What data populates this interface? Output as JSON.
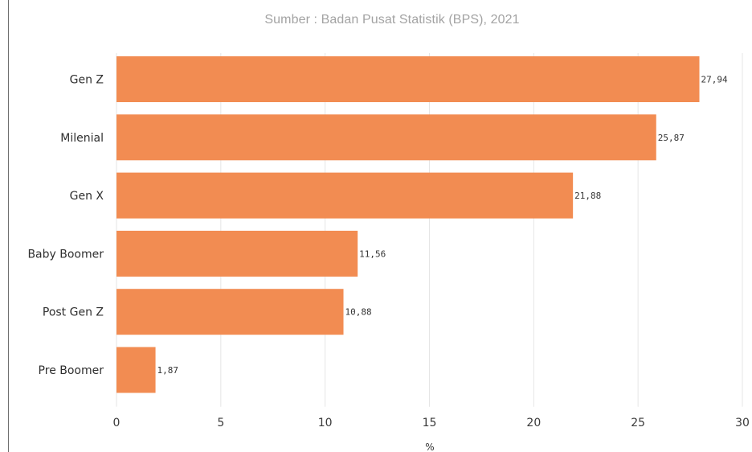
{
  "chart_data": {
    "type": "bar",
    "orientation": "horizontal",
    "title": "Sumber : Badan Pusat Statistik (BPS), 2021",
    "categories": [
      "Gen Z",
      "Milenial",
      "Gen X",
      "Baby Boomer",
      "Post Gen Z",
      "Pre Boomer"
    ],
    "values": [
      27.94,
      25.87,
      21.88,
      11.56,
      10.88,
      1.87
    ],
    "value_labels": [
      "27,94",
      "25,87",
      "21,88",
      "11,56",
      "10,88",
      "1,87"
    ],
    "xlabel": "%",
    "ylabel": "",
    "xlim": [
      0,
      30
    ],
    "xticks": [
      0,
      5,
      10,
      15,
      20,
      25,
      30
    ],
    "grid": true,
    "bar_color": "#f28c52",
    "grid_color": "#e6e6e6"
  }
}
